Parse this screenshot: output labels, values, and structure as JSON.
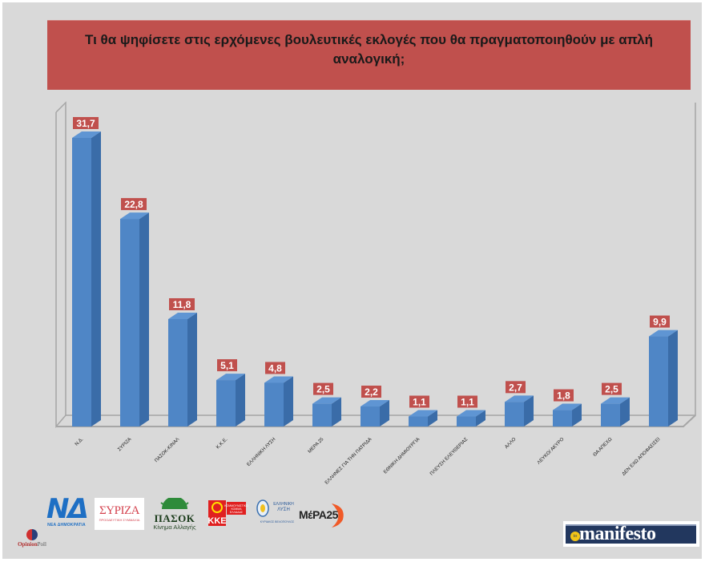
{
  "title": "Τι θα ψηφίσετε στις ερχόμενες βουλευτικές εκλογές που θα πραγματοποιηθούν με απλή αναλογική;",
  "colors": {
    "background": "#d9d9d9",
    "title_box": "#c0504d",
    "bar_front": "#4f86c6",
    "bar_side": "#3a6ca8",
    "bar_top": "#5f95d3",
    "label_box": "#c0504d",
    "label_text": "#ffffff",
    "frame": "#a6a6a6"
  },
  "chart_data": {
    "type": "bar",
    "style": "3d-column",
    "title": "Τι θα ψηφίσετε στις ερχόμενες βουλευτικές εκλογές που θα πραγματοποιηθούν με απλή αναλογική;",
    "xlabel": "",
    "ylabel": "",
    "categories": [
      "Ν.Δ.",
      "ΣΥΡΙΖΑ",
      "ΠΑΣΟΚ-ΚΙΝΑΛ",
      "Κ.Κ.Ε.",
      "ΕΛΛΗΝΙΚΗ ΛΥΣΗ",
      "ΜΕΡΑ 25",
      "ΕΛΛΗΝΕΣ ΓΙΑ ΤΗΝ ΠΑΤΡΙΔΑ",
      "ΕΘΝΙΚΗ ΔΗΜΙΟΥΡΓΙΑ",
      "ΠΛΕΥΣΗ ΕΛΕΥΘΕΡΙΑΣ",
      "ΑΛΛΟ",
      "ΛΕΥΚΟ/ ΑΚΥΡΟ",
      "ΘΑ ΑΠΕΧΩ",
      "ΔΕΝ ΕΧΩ ΑΠΟΦΑΣΙΣΕΙ"
    ],
    "values": [
      31.7,
      22.8,
      11.8,
      5.1,
      4.8,
      2.5,
      2.2,
      1.1,
      1.1,
      2.7,
      1.8,
      2.5,
      9.9
    ],
    "value_labels": [
      "31,7",
      "22,8",
      "11,8",
      "5,1",
      "4,8",
      "2,5",
      "2,2",
      "1,1",
      "1,1",
      "2,7",
      "1,8",
      "2,5",
      "9,9"
    ],
    "ylim": [
      0,
      35
    ],
    "grid": false,
    "legend": "none",
    "data_labels": true
  },
  "logos": {
    "nd": {
      "letters": "ΝΔ",
      "sub": "ΝΕΑ ΔΗΜΟΚΡΑΤΙΑ"
    },
    "syriza": {
      "text": "ΣΥΡΙΖΑ",
      "sub": "ΠΡΟΟΔΕΥΤΙΚΗ ΣΥΜΜΑΧΙΑ"
    },
    "pasok": {
      "text": "ΠΑΣΟΚ",
      "sub": "Κίνημα Αλλαγής"
    },
    "kke": {
      "text": "ΚΚΕ",
      "sub": "ΚΟΜΜΟΥΝΙΣΤΙΚΟ ΚΟΜΜΑ ΕΛΛΑΔΑΣ"
    },
    "ellisi": {
      "text": "ΕΛΛΗΝΙΚΗ ΛΥΣΗ",
      "sub": "ΚΥΡΙΑΚΟΣ ΒΕΛΟΠΟΥΛΟΣ"
    },
    "mera": {
      "text": "ΜέΡΑ25"
    },
    "opinion_poll": {
      "brand": "Opinion",
      "suffix": "Poll"
    },
    "manifesto": {
      "prefix": "to",
      "text": "manifesto"
    }
  }
}
